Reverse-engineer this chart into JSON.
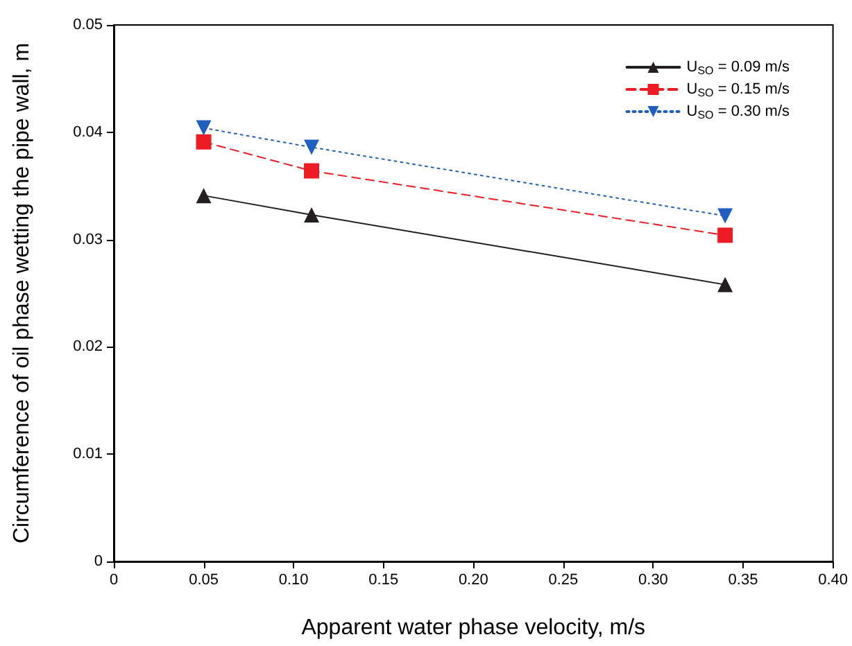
{
  "chart_data": {
    "type": "line",
    "xlabel": "Apparent water phase velocity, m/s",
    "ylabel": "Circumference of oil phase wetting the pipe wall, m",
    "x": [
      0.05,
      0.11,
      0.34
    ],
    "series": [
      {
        "name": "U$_{SO}$ = 0.09 m/s",
        "color": "#231f20",
        "values": [
          0.0341,
          0.0323,
          0.0258
        ],
        "marker": "triangle",
        "line_style": "solid"
      },
      {
        "name": "U$_{SO}$ = 0.15 m/s",
        "color": "#ed1c24",
        "values": [
          0.0391,
          0.0364,
          0.0304
        ],
        "marker": "square",
        "line_style": "dashed"
      },
      {
        "name": "U$_{SO}$ = 0.30 m/s",
        "color": "#1f5fbf",
        "values": [
          0.0404,
          0.0386,
          0.0322
        ],
        "marker": "triangle-down",
        "line_style": "dotted"
      }
    ],
    "xlim": [
      0,
      0.4
    ],
    "xticks": [
      0,
      0.05,
      {
        "value": 0.1,
        "label": "0.10"
      },
      0.15,
      {
        "value": 0.2,
        "label": "0.20"
      },
      0.25,
      {
        "value": 0.3,
        "label": "0.30"
      },
      0.35,
      {
        "value": 0.4,
        "label": "0.40"
      }
    ],
    "ylim": [
      0,
      0.05
    ],
    "yticks": [
      0,
      0.01,
      0.02,
      0.03,
      0.04,
      0.05
    ],
    "grid": false,
    "legend": "top right"
  }
}
